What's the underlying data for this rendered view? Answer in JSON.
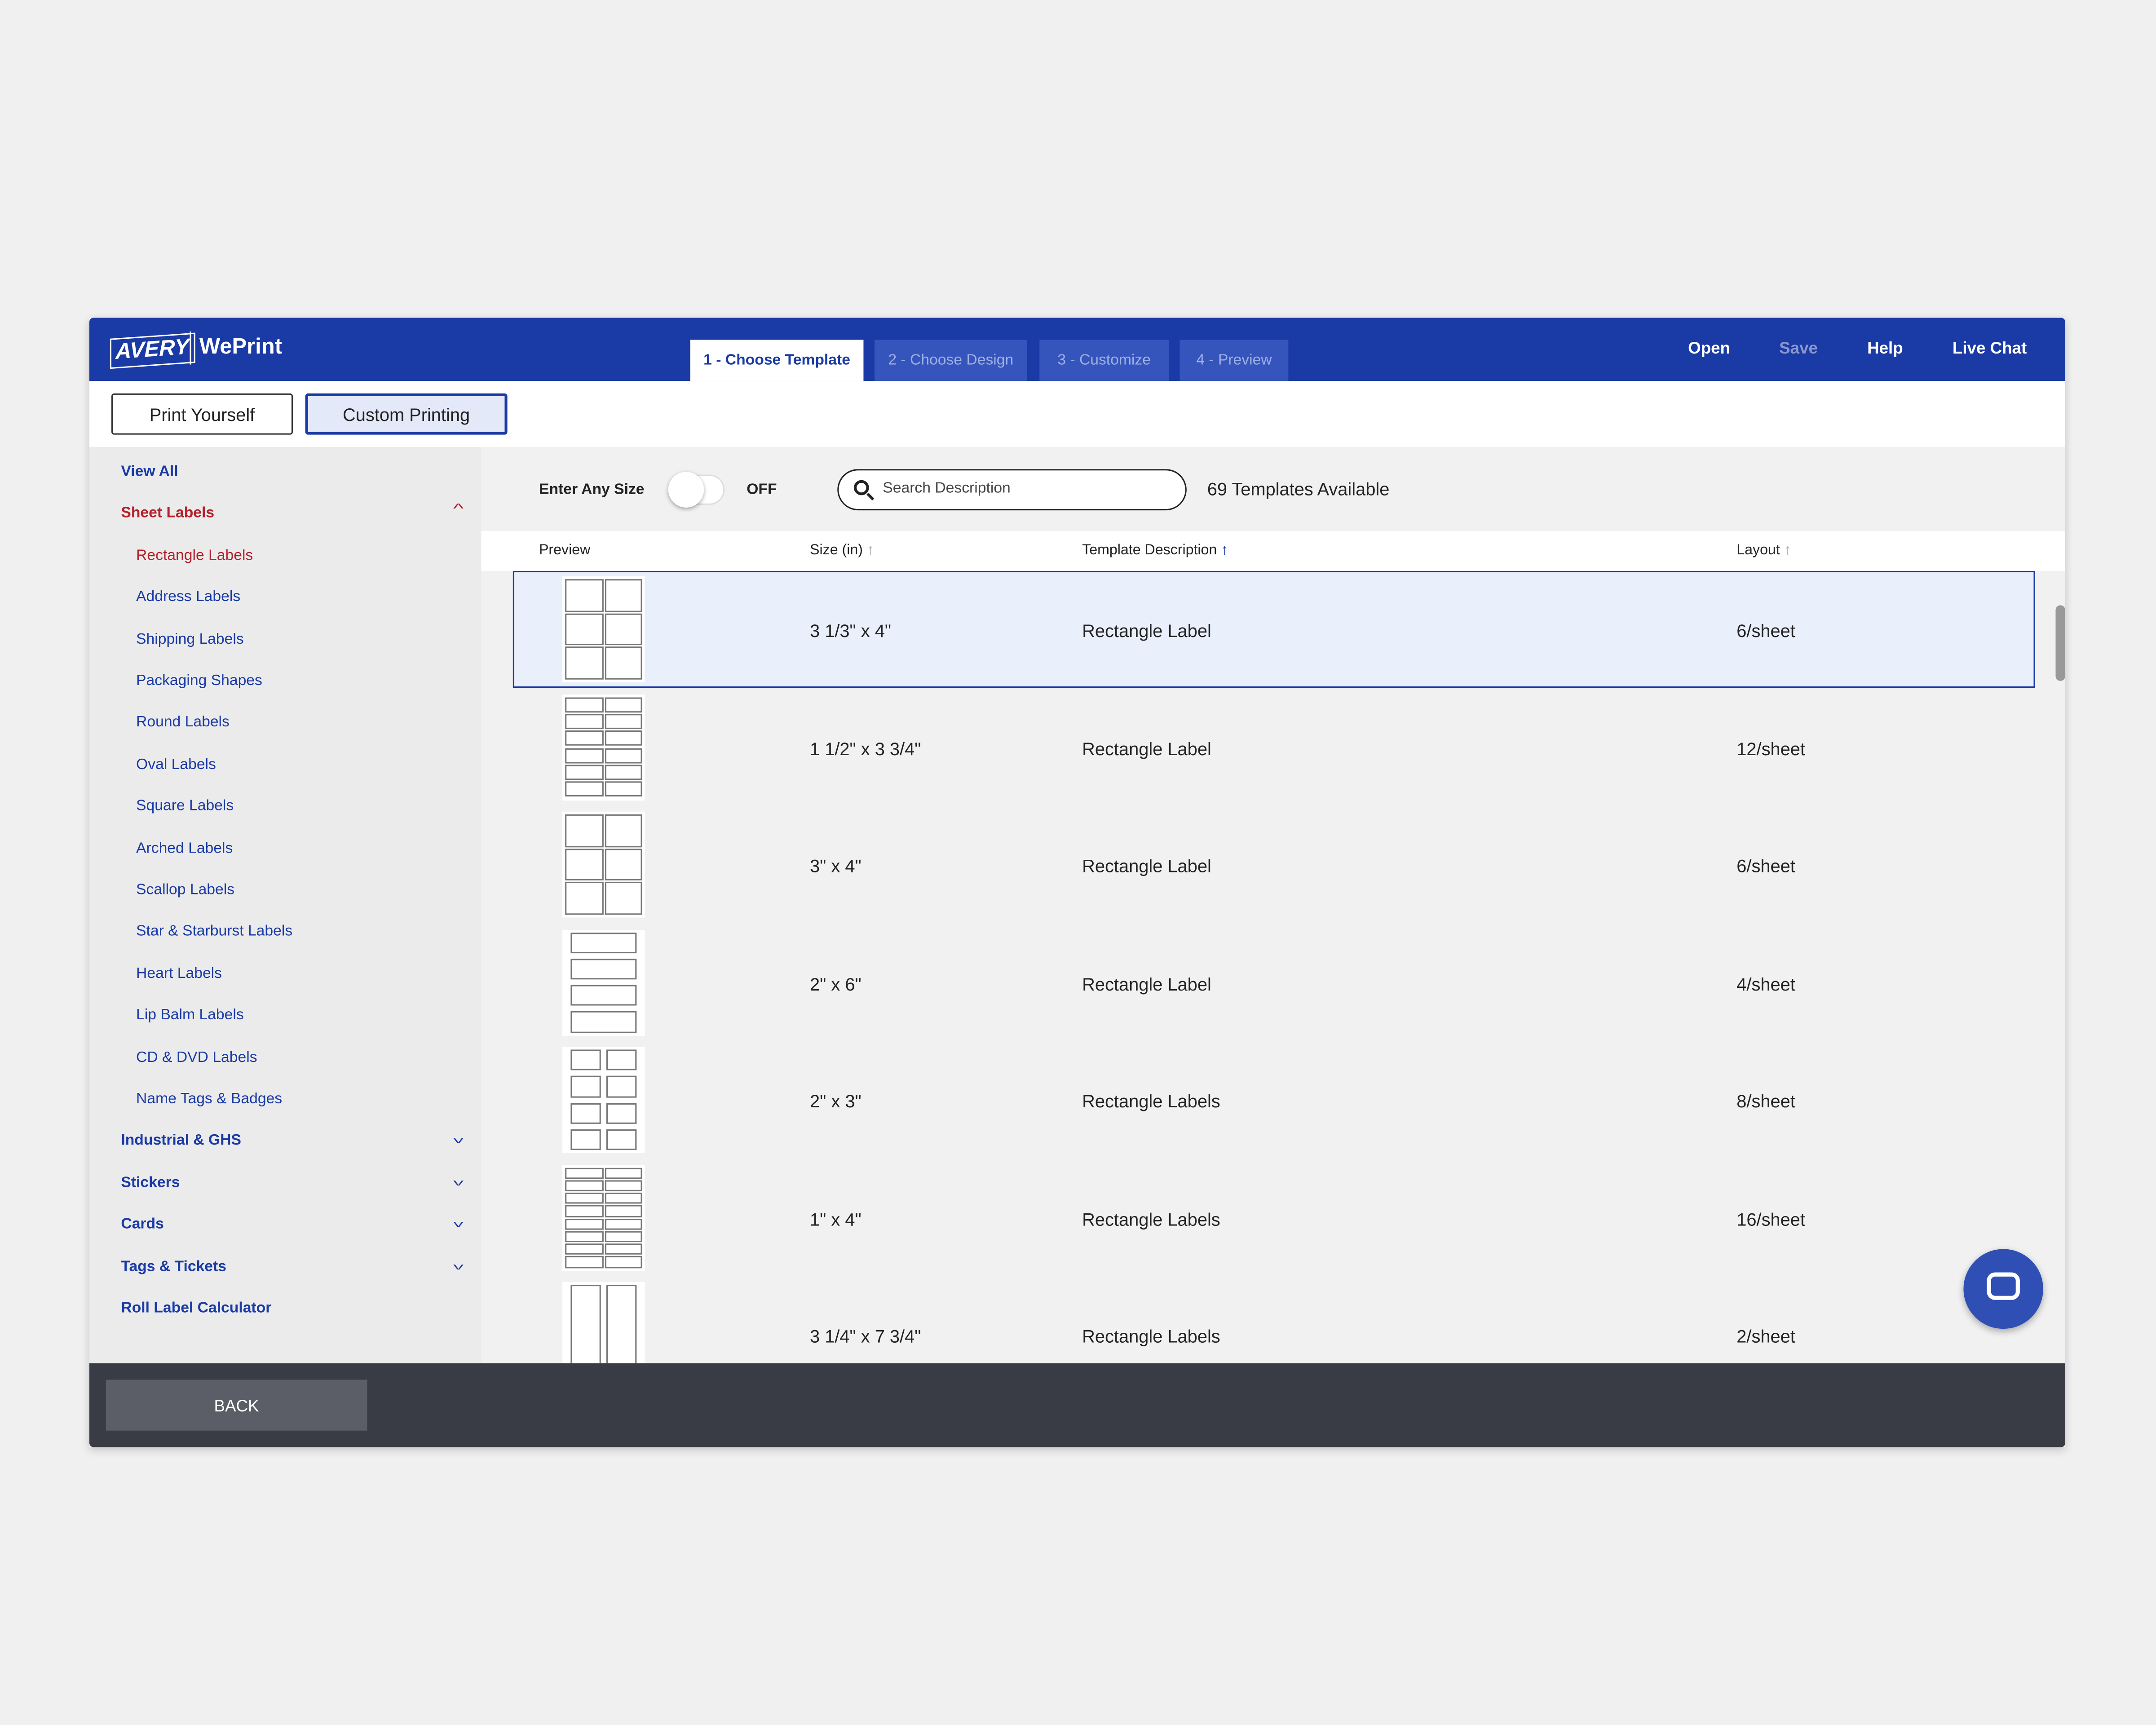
{
  "header": {
    "logo": "AVERY",
    "product": "WePrint",
    "tabs": [
      "1 - Choose Template",
      "2 - Choose Design",
      "3 - Customize",
      "4 - Preview"
    ],
    "nav": [
      "Open",
      "Save",
      "Help",
      "Live Chat"
    ]
  },
  "modes": [
    "Print Yourself",
    "Custom Printing"
  ],
  "sidebar": {
    "items": [
      {
        "label": "View All"
      },
      {
        "label": "Sheet Labels",
        "children": [
          "Rectangle Labels",
          "Address Labels",
          "Shipping Labels",
          "Packaging Shapes",
          "Round Labels",
          "Oval Labels",
          "Square Labels",
          "Arched Labels",
          "Scallop Labels",
          "Star & Starburst Labels",
          "Heart Labels",
          "Lip Balm Labels",
          "CD & DVD Labels",
          "Name Tags & Badges"
        ]
      },
      {
        "label": "Industrial & GHS"
      },
      {
        "label": "Stickers"
      },
      {
        "label": "Cards"
      },
      {
        "label": "Tags & Tickets"
      },
      {
        "label": "Roll Label Calculator"
      }
    ]
  },
  "toolbar": {
    "toggle_label": "Enter Any Size",
    "toggle_state": "OFF",
    "search_placeholder": "Search Description",
    "count": "69 Templates Available"
  },
  "table": {
    "columns": [
      "Preview",
      "Size (in)",
      "Template Description",
      "Layout"
    ],
    "rows": [
      [
        "3 1/3\" x 4\"",
        "Rectangle Label",
        "6/sheet"
      ],
      [
        "1 1/2\" x 3 3/4\"",
        "Rectangle Label",
        "12/sheet"
      ],
      [
        "3\" x 4\"",
        "Rectangle Label",
        "6/sheet"
      ],
      [
        "2\" x 6\"",
        "Rectangle Label",
        "4/sheet"
      ],
      [
        "2\" x 3\"",
        "Rectangle Labels",
        "8/sheet"
      ],
      [
        "1\" x 4\"",
        "Rectangle Labels",
        "16/sheet"
      ],
      [
        "3 1/4\" x 7 3/4\"",
        "Rectangle Labels",
        "2/sheet"
      ]
    ]
  },
  "footer": {
    "back": "BACK"
  }
}
